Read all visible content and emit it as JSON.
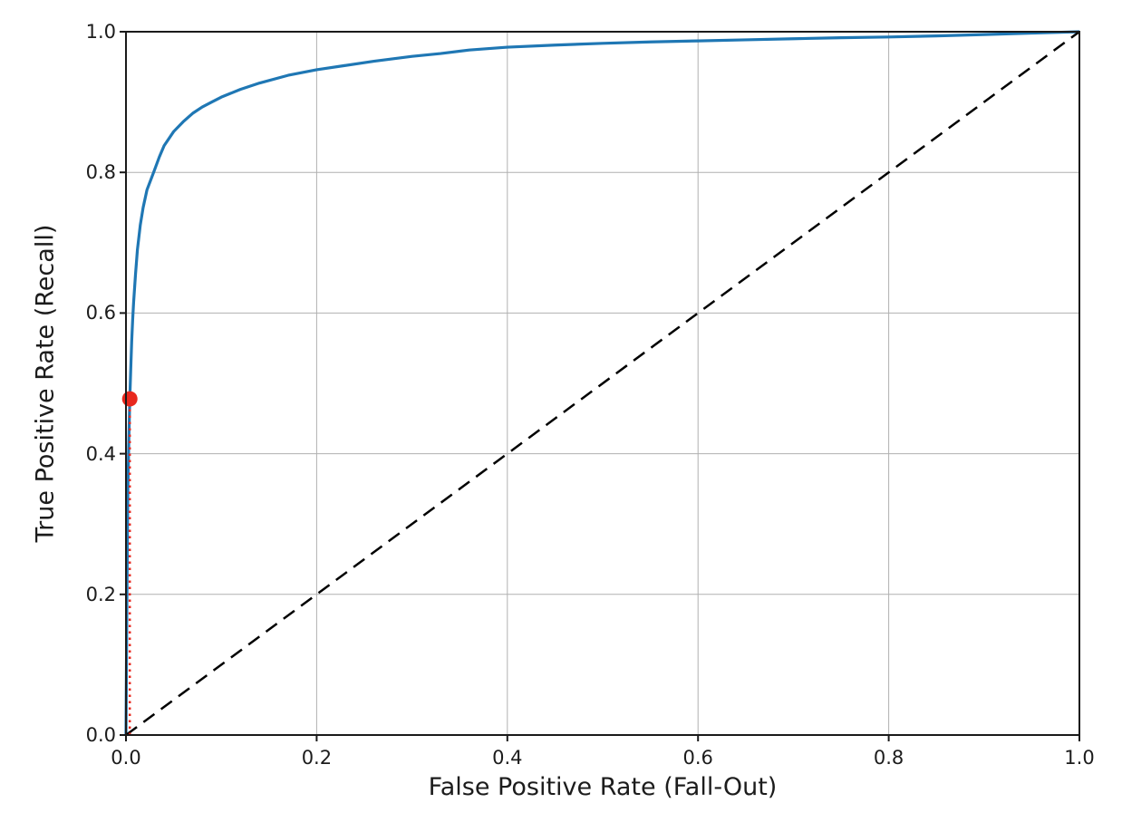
{
  "chart_data": {
    "type": "line",
    "title": "",
    "xlabel": "False Positive Rate (Fall-Out)",
    "ylabel": "True Positive Rate (Recall)",
    "xlim": [
      0.0,
      1.0
    ],
    "ylim": [
      0.0,
      1.0
    ],
    "grid": true,
    "grid_color": "#b0b0b0",
    "spine_color": "#1a1a1a",
    "background_color": "#ffffff",
    "legend": "none",
    "xtick_values": [
      0.0,
      0.2,
      0.4,
      0.6,
      0.8,
      1.0
    ],
    "xtick_labels": [
      "0.0",
      "0.2",
      "0.4",
      "0.6",
      "0.8",
      "1.0"
    ],
    "ytick_values": [
      0.0,
      0.2,
      0.4,
      0.6,
      0.8,
      1.0
    ],
    "ytick_labels": [
      "0.0",
      "0.2",
      "0.4",
      "0.6",
      "0.8",
      "1.0"
    ],
    "series": [
      {
        "name": "roc-curve",
        "type": "line",
        "color": "#1f77b4",
        "line_width": 3.2,
        "line_style": "solid",
        "points": [
          [
            0.0,
            0.0
          ],
          [
            0.0005,
            0.1
          ],
          [
            0.001,
            0.2
          ],
          [
            0.0015,
            0.28
          ],
          [
            0.002,
            0.35
          ],
          [
            0.003,
            0.42
          ],
          [
            0.004,
            0.478
          ],
          [
            0.005,
            0.52
          ],
          [
            0.006,
            0.56
          ],
          [
            0.007,
            0.59
          ],
          [
            0.008,
            0.615
          ],
          [
            0.01,
            0.655
          ],
          [
            0.012,
            0.69
          ],
          [
            0.015,
            0.725
          ],
          [
            0.018,
            0.75
          ],
          [
            0.022,
            0.775
          ],
          [
            0.029,
            0.8
          ],
          [
            0.035,
            0.822
          ],
          [
            0.04,
            0.838
          ],
          [
            0.05,
            0.858
          ],
          [
            0.06,
            0.872
          ],
          [
            0.07,
            0.884
          ],
          [
            0.08,
            0.893
          ],
          [
            0.09,
            0.9
          ],
          [
            0.1,
            0.907
          ],
          [
            0.12,
            0.918
          ],
          [
            0.14,
            0.927
          ],
          [
            0.17,
            0.938
          ],
          [
            0.2,
            0.946
          ],
          [
            0.23,
            0.952
          ],
          [
            0.26,
            0.958
          ],
          [
            0.3,
            0.965
          ],
          [
            0.33,
            0.969
          ],
          [
            0.36,
            0.974
          ],
          [
            0.4,
            0.978
          ],
          [
            0.45,
            0.981
          ],
          [
            0.5,
            0.9835
          ],
          [
            0.55,
            0.9855
          ],
          [
            0.6,
            0.987
          ],
          [
            0.65,
            0.9885
          ],
          [
            0.7,
            0.99
          ],
          [
            0.75,
            0.9915
          ],
          [
            0.8,
            0.9925
          ],
          [
            0.85,
            0.994
          ],
          [
            0.9,
            0.996
          ],
          [
            0.95,
            0.998
          ],
          [
            1.0,
            1.0
          ]
        ]
      },
      {
        "name": "chance-diagonal",
        "type": "line",
        "color": "#000000",
        "line_width": 2.5,
        "line_style": "dashed",
        "points": [
          [
            0.0,
            0.0
          ],
          [
            1.0,
            1.0
          ]
        ]
      },
      {
        "name": "threshold-drop-line",
        "type": "line",
        "color": "#e8281e",
        "line_width": 2.5,
        "line_style": "dotted",
        "points": [
          [
            0.004,
            0.0
          ],
          [
            0.004,
            0.478
          ]
        ]
      },
      {
        "name": "operating-point",
        "type": "marker",
        "color": "#e8281e",
        "marker_radius": 8.5,
        "points": [
          [
            0.004,
            0.478
          ]
        ]
      }
    ]
  }
}
